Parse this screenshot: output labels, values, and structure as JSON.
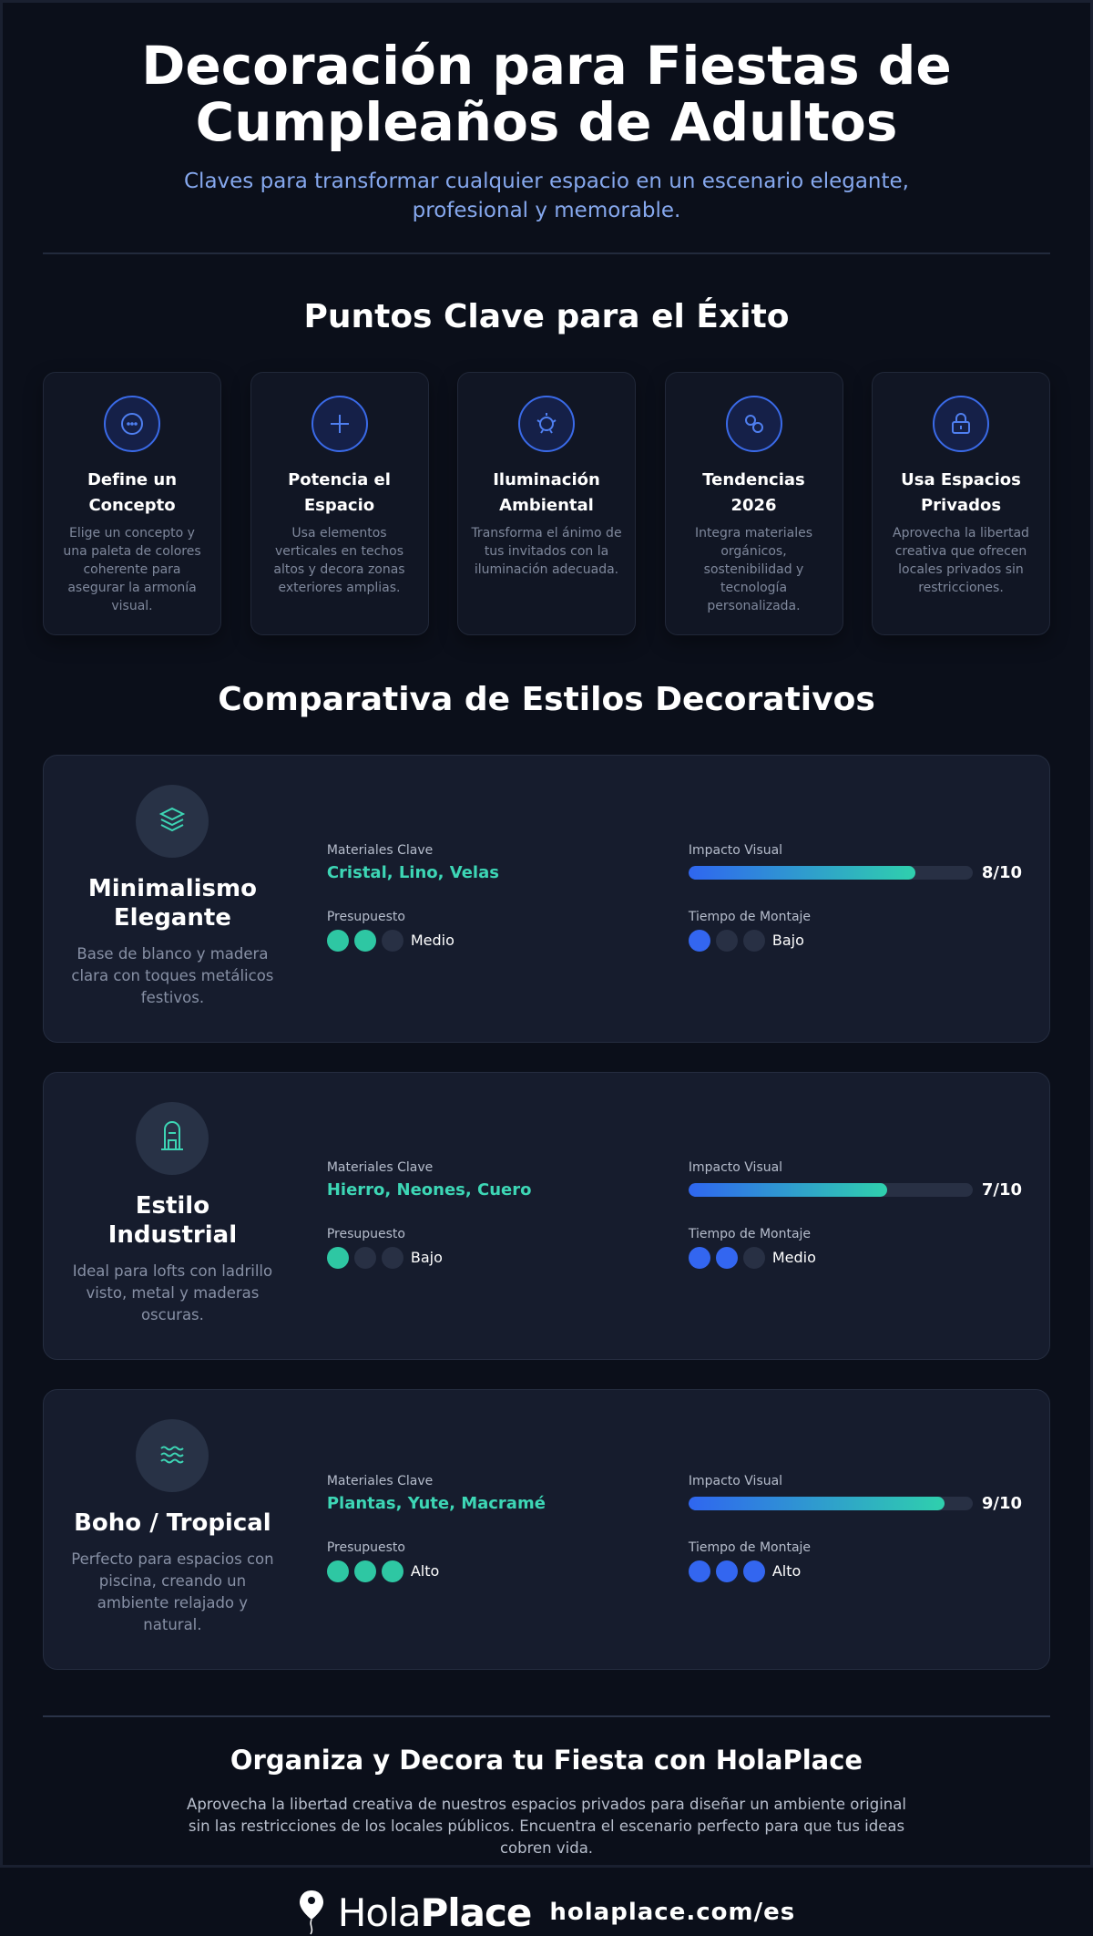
{
  "header": {
    "title": "Decoración para Fiestas de Cumpleaños de Adultos",
    "subtitle": "Claves para transformar cualquier espacio en un escenario elegante, profesional y memorable."
  },
  "key_points": {
    "title": "Puntos Clave para el Éxito",
    "items": [
      {
        "title": "Define un Concepto",
        "text": "Elige un concepto y una paleta de colores coherente para asegurar la armonía visual."
      },
      {
        "title": "Potencia el Espacio",
        "text": "Usa elementos verticales en techos altos y decora zonas exteriores amplias."
      },
      {
        "title": "Iluminación Ambiental",
        "text": "Transforma el ánimo de tus invitados con la iluminación adecuada."
      },
      {
        "title": "Tendencias 2026",
        "text": "Integra materiales orgánicos, sostenibilidad y tecnología personalizada."
      },
      {
        "title": "Usa Espacios Privados",
        "text": "Aprovecha la libertad creativa que ofrecen locales privados sin restricciones."
      }
    ]
  },
  "comparison": {
    "title": "Comparativa de Estilos Decorativos",
    "labels": {
      "materials": "Materiales Clave",
      "budget": "Presupuesto",
      "impact": "Impacto Visual",
      "time": "Tiempo de Montaje"
    },
    "styles": [
      {
        "name": "Minimalismo Elegante",
        "description": "Base de blanco y madera clara con toques metálicos festivos.",
        "materials": "Cristal, Lino, Velas",
        "budget": {
          "level": 2,
          "max": 3,
          "label": "Medio"
        },
        "impact": {
          "value": 8,
          "max": 10,
          "label": "8/10"
        },
        "time": {
          "level": 1,
          "max": 3,
          "label": "Bajo"
        }
      },
      {
        "name": "Estilo Industrial",
        "description": "Ideal para lofts con ladrillo visto, metal y maderas oscuras.",
        "materials": "Hierro, Neones, Cuero",
        "budget": {
          "level": 1,
          "max": 3,
          "label": "Bajo"
        },
        "impact": {
          "value": 7,
          "max": 10,
          "label": "7/10"
        },
        "time": {
          "level": 2,
          "max": 3,
          "label": "Medio"
        }
      },
      {
        "name": "Boho / Tropical",
        "description": "Perfecto para espacios con piscina, creando un ambiente relajado y natural.",
        "materials": "Plantas, Yute, Macramé",
        "budget": {
          "level": 3,
          "max": 3,
          "label": "Alto"
        },
        "impact": {
          "value": 9,
          "max": 10,
          "label": "9/10"
        },
        "time": {
          "level": 3,
          "max": 3,
          "label": "Alto"
        }
      }
    ]
  },
  "footer": {
    "title": "Organiza y Decora tu Fiesta con HolaPlace",
    "text": "Aprovecha la libertad creativa de nuestros espacios privados para diseñar un ambiente original sin las restricciones de los locales públicos. Encuentra el escenario perfecto para que tus ideas cobren vida.",
    "brand": [
      "Hola",
      "Place"
    ],
    "url": "holaplace.com/es"
  }
}
